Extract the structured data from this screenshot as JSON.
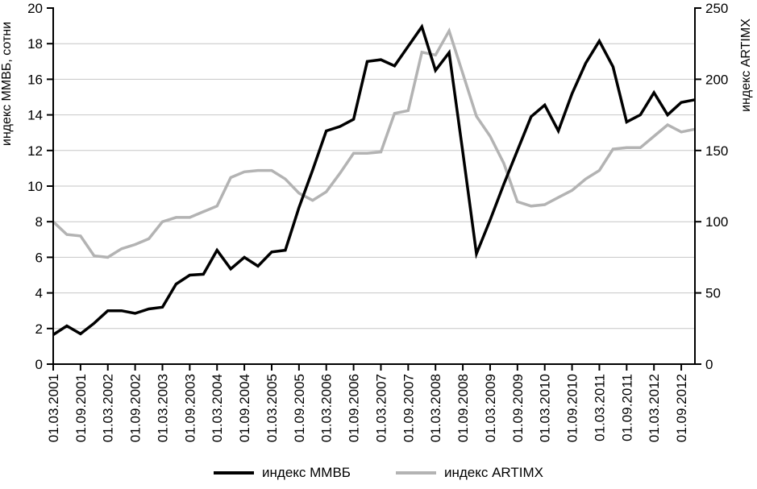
{
  "figure": {
    "background": "#ffffff",
    "grid_color": "#c6c6c6",
    "axis_color": "#000000",
    "legend": {
      "mmvb_label": "индекс ММВБ",
      "artimx_label": "индекс ARTIMX"
    }
  },
  "chart_data": {
    "type": "line",
    "title": "",
    "grid": "horizontal",
    "legend_position": "bottom",
    "points_per_x_tick": 2,
    "x_tick_labels": [
      "01.03.2001",
      "01.09.2001",
      "01.03.2002",
      "01.09.2002",
      "01.03.2003",
      "01.09.2003",
      "01.03.2004",
      "01.09.2004",
      "01.03.2005",
      "01.09.2005",
      "01.03.2006",
      "01.09.2006",
      "01.03.2007",
      "01.09.2007",
      "01.03.2008",
      "01.09.2008",
      "01.03.2009",
      "01.09.2009",
      "01.03.2010",
      "01.09.2010",
      "01.03.2011",
      "01.09.2011",
      "01.03.2012",
      "01.09.2012"
    ],
    "left_axis": {
      "label": "индекс ММВБ, сотни",
      "range": [
        0,
        20
      ],
      "tick_step": 2,
      "tick_labels": [
        "0",
        "2",
        "4",
        "6",
        "8",
        "10",
        "12",
        "14",
        "16",
        "18",
        "20"
      ]
    },
    "right_axis": {
      "label": "индекс ARTIMX",
      "range": [
        0,
        250
      ],
      "tick_step": 50,
      "tick_labels": [
        "0",
        "50",
        "100",
        "150",
        "200",
        "250"
      ]
    },
    "series": [
      {
        "name": "индекс ММВБ",
        "axis": "left",
        "color": "#000000",
        "stroke_width": 3.5,
        "values": [
          1.65,
          2.15,
          1.7,
          2.3,
          3.0,
          3.0,
          2.85,
          3.1,
          3.2,
          4.5,
          5.0,
          5.05,
          6.4,
          5.35,
          6.0,
          5.5,
          6.3,
          6.4,
          8.8,
          10.9,
          13.1,
          13.35,
          13.75,
          17.0,
          17.1,
          16.75,
          17.85,
          18.95,
          16.5,
          17.5,
          11.9,
          6.2,
          8.1,
          10.1,
          12.0,
          13.9,
          14.55,
          13.1,
          15.2,
          16.9,
          18.15,
          16.7,
          13.6,
          14.0,
          15.25,
          14.0,
          14.7,
          14.85
        ]
      },
      {
        "name": "индекс ARTIMX",
        "axis": "right",
        "color": "#b3b3b3",
        "stroke_width": 3.5,
        "values": [
          100,
          91,
          90,
          76,
          75,
          81,
          84,
          88,
          100,
          103,
          103,
          107,
          111,
          131,
          135,
          136,
          136,
          130,
          120,
          115,
          121,
          134,
          148,
          148,
          149,
          176,
          178,
          219,
          217,
          234,
          204,
          174,
          160,
          141,
          114,
          111,
          112,
          117,
          122,
          130,
          136,
          151,
          152,
          152,
          160,
          168,
          163,
          165
        ]
      }
    ]
  }
}
